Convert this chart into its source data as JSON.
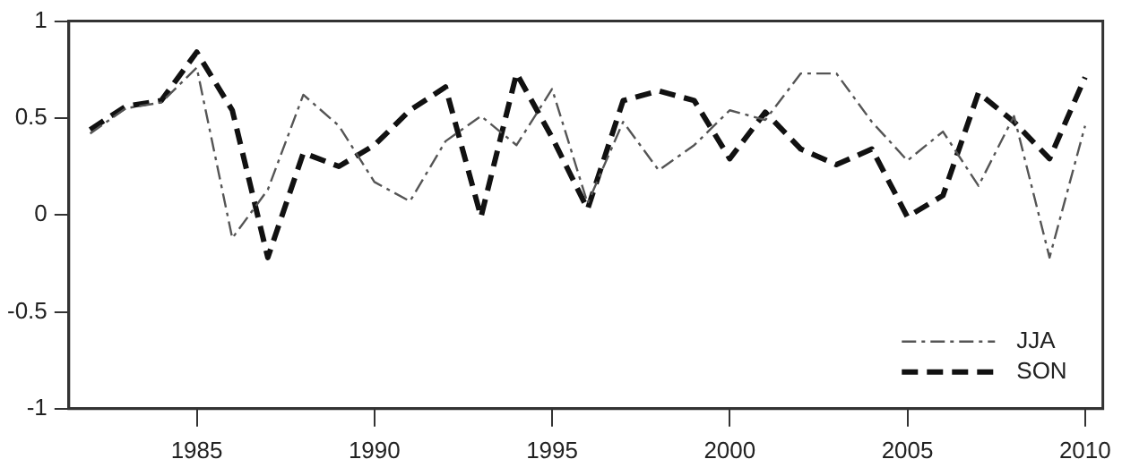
{
  "chart_data": {
    "type": "line",
    "x": [
      1982,
      1983,
      1984,
      1985,
      1986,
      1987,
      1988,
      1989,
      1990,
      1991,
      1992,
      1993,
      1994,
      1995,
      1996,
      1997,
      1998,
      1999,
      2000,
      2001,
      2002,
      2003,
      2004,
      2005,
      2006,
      2007,
      2008,
      2009,
      2010
    ],
    "series": [
      {
        "name": "JJA",
        "color": "#555555",
        "line_style": "dashdot",
        "values": [
          0.42,
          0.55,
          0.58,
          0.76,
          -0.12,
          0.13,
          0.62,
          0.46,
          0.17,
          0.07,
          0.38,
          0.51,
          0.36,
          0.65,
          0.06,
          0.48,
          0.23,
          0.36,
          0.54,
          0.49,
          0.73,
          0.73,
          0.48,
          0.28,
          0.43,
          0.15,
          0.51,
          -0.22,
          0.46
        ]
      },
      {
        "name": "SON",
        "color": "#111111",
        "line_style": "dashed",
        "values": [
          0.44,
          0.56,
          0.59,
          0.84,
          0.54,
          -0.22,
          0.32,
          0.25,
          0.36,
          0.54,
          0.66,
          -0.01,
          0.73,
          0.4,
          0.03,
          0.59,
          0.64,
          0.59,
          0.29,
          0.53,
          0.34,
          0.26,
          0.34,
          -0.01,
          0.1,
          0.63,
          0.48,
          0.29,
          0.71
        ]
      }
    ],
    "xlim": [
      1981.4,
      2010.5
    ],
    "xticks": [
      1985,
      1990,
      1995,
      2000,
      2005,
      2010
    ],
    "ylim": [
      -1,
      1
    ],
    "yticks": [
      -1,
      -0.5,
      0,
      0.5,
      1
    ],
    "grid": false,
    "legend": "bottom right",
    "marker": "none"
  }
}
